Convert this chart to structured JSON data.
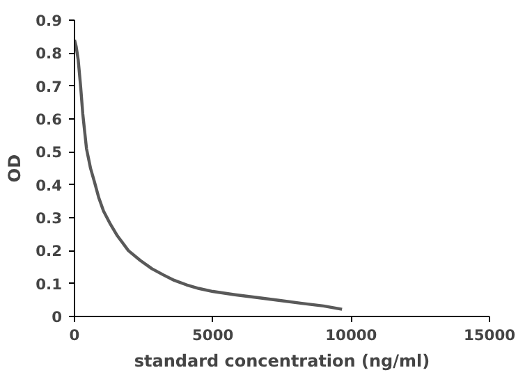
{
  "chart_data": {
    "type": "line",
    "xlabel": "standard concentration (ng/ml)",
    "ylabel": "OD",
    "xlim": [
      0,
      15000
    ],
    "xticks": [
      0,
      5000,
      10000,
      15000
    ],
    "ylim": [
      0,
      0.9
    ],
    "yticks": [
      0,
      0.1,
      0.2,
      0.3,
      0.4,
      0.5,
      0.6,
      0.7,
      0.8,
      0.9
    ],
    "grid": false,
    "series": [
      {
        "color": "#595959",
        "x": [
          0,
          60,
          133,
          220,
          300,
          433,
          580,
          717,
          880,
          1050,
          1300,
          1550,
          1950,
          2380,
          2800,
          3220,
          3600,
          4050,
          4500,
          5000,
          5800,
          6550,
          7380,
          8220,
          9000,
          9670
        ],
        "values": [
          0.84,
          0.82,
          0.78,
          0.7,
          0.615,
          0.51,
          0.45,
          0.41,
          0.36,
          0.32,
          0.28,
          0.245,
          0.2,
          0.17,
          0.145,
          0.126,
          0.11,
          0.096,
          0.085,
          0.076,
          0.066,
          0.058,
          0.049,
          0.04,
          0.032,
          0.022
        ]
      }
    ]
  }
}
